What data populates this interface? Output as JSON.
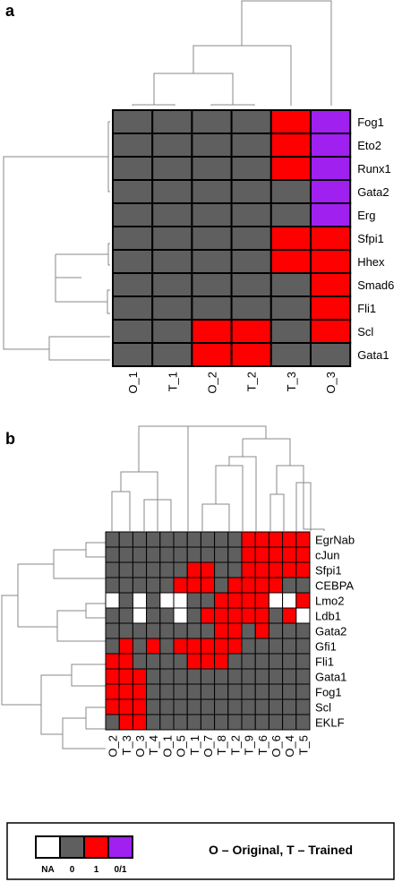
{
  "chart_data": [
    {
      "type": "heatmap",
      "panel_label": "a",
      "rows": [
        "Fog1",
        "Eto2",
        "Runx1",
        "Gata2",
        "Erg",
        "Sfpi1",
        "Hhex",
        "Smad6",
        "Fli1",
        "Scl",
        "Gata1"
      ],
      "columns": [
        "O_1",
        "T_1",
        "O_2",
        "T_2",
        "T_3",
        "O_3"
      ],
      "values": [
        [
          "0",
          "0",
          "0",
          "0",
          "1",
          "0/1"
        ],
        [
          "0",
          "0",
          "0",
          "0",
          "1",
          "0/1"
        ],
        [
          "0",
          "0",
          "0",
          "0",
          "1",
          "0/1"
        ],
        [
          "0",
          "0",
          "0",
          "0",
          "0",
          "0/1"
        ],
        [
          "0",
          "0",
          "0",
          "0",
          "0",
          "0/1"
        ],
        [
          "0",
          "0",
          "0",
          "0",
          "1",
          "1"
        ],
        [
          "0",
          "0",
          "0",
          "0",
          "1",
          "1"
        ],
        [
          "0",
          "0",
          "0",
          "0",
          "0",
          "1"
        ],
        [
          "0",
          "0",
          "0",
          "0",
          "0",
          "1"
        ],
        [
          "0",
          "0",
          "1",
          "1",
          "0",
          "1"
        ],
        [
          "0",
          "0",
          "1",
          "1",
          "0",
          "0"
        ]
      ]
    },
    {
      "type": "heatmap",
      "panel_label": "b",
      "rows": [
        "EgrNab",
        "cJun",
        "Sfpi1",
        "CEBPA",
        "Lmo2",
        "Ldb1",
        "Gata2",
        "Gfi1",
        "Fli1",
        "Gata1",
        "Fog1",
        "Scl",
        "EKLF"
      ],
      "columns": [
        "O_2",
        "T_3",
        "O_3",
        "T_4",
        "O_1",
        "O_5",
        "T_1",
        "O_7",
        "T_8",
        "T_2",
        "T_9",
        "T_6",
        "O_6",
        "O_4",
        "T_5"
      ],
      "values": [
        [
          "0",
          "0",
          "0",
          "0",
          "0",
          "0",
          "0",
          "0",
          "0",
          "0",
          "1",
          "1",
          "1",
          "1",
          "1"
        ],
        [
          "0",
          "0",
          "0",
          "0",
          "0",
          "0",
          "0",
          "0",
          "0",
          "0",
          "1",
          "1",
          "1",
          "1",
          "1"
        ],
        [
          "0",
          "0",
          "0",
          "0",
          "0",
          "0",
          "1",
          "1",
          "0",
          "0",
          "1",
          "1",
          "1",
          "1",
          "1"
        ],
        [
          "0",
          "0",
          "0",
          "0",
          "0",
          "1",
          "1",
          "1",
          "0",
          "1",
          "1",
          "1",
          "1",
          "0",
          "0"
        ],
        [
          "NA",
          "0",
          "NA",
          "0",
          "NA",
          "NA",
          "0",
          "0",
          "1",
          "1",
          "1",
          "1",
          "NA",
          "NA",
          "1"
        ],
        [
          "0",
          "0",
          "NA",
          "0",
          "0",
          "NA",
          "0",
          "1",
          "1",
          "1",
          "1",
          "1",
          "0",
          "1",
          "NA"
        ],
        [
          "0",
          "0",
          "0",
          "0",
          "0",
          "0",
          "0",
          "0",
          "1",
          "1",
          "0",
          "1",
          "0",
          "0",
          "0"
        ],
        [
          "0",
          "1",
          "0",
          "1",
          "0",
          "1",
          "1",
          "1",
          "1",
          "1",
          "0",
          "0",
          "0",
          "0",
          "0"
        ],
        [
          "1",
          "1",
          "0",
          "0",
          "0",
          "0",
          "1",
          "1",
          "1",
          "0",
          "0",
          "0",
          "0",
          "0",
          "0"
        ],
        [
          "1",
          "1",
          "1",
          "0",
          "0",
          "0",
          "0",
          "0",
          "0",
          "0",
          "0",
          "0",
          "0",
          "0",
          "0"
        ],
        [
          "1",
          "1",
          "1",
          "0",
          "0",
          "0",
          "0",
          "0",
          "0",
          "0",
          "0",
          "0",
          "0",
          "0",
          "0"
        ],
        [
          "1",
          "1",
          "1",
          "0",
          "0",
          "0",
          "0",
          "0",
          "0",
          "0",
          "0",
          "0",
          "0",
          "0",
          "0"
        ],
        [
          "0",
          "1",
          "1",
          "0",
          "0",
          "0",
          "0",
          "0",
          "0",
          "0",
          "0",
          "0",
          "0",
          "0",
          "0"
        ]
      ]
    }
  ],
  "legend": {
    "entries": [
      {
        "value": "NA",
        "label": "NA",
        "color": "#ffffff"
      },
      {
        "value": "0",
        "label": "0",
        "color": "#5f5f5f"
      },
      {
        "value": "1",
        "label": "1",
        "color": "#ff0000"
      },
      {
        "value": "0/1",
        "label": "0/1",
        "color": "#a020f0"
      }
    ],
    "text": "O – Original, T – Trained"
  },
  "colors": {
    "NA": "#ffffff",
    "0": "#5f5f5f",
    "1": "#ff0000",
    "0/1": "#a020f0"
  }
}
